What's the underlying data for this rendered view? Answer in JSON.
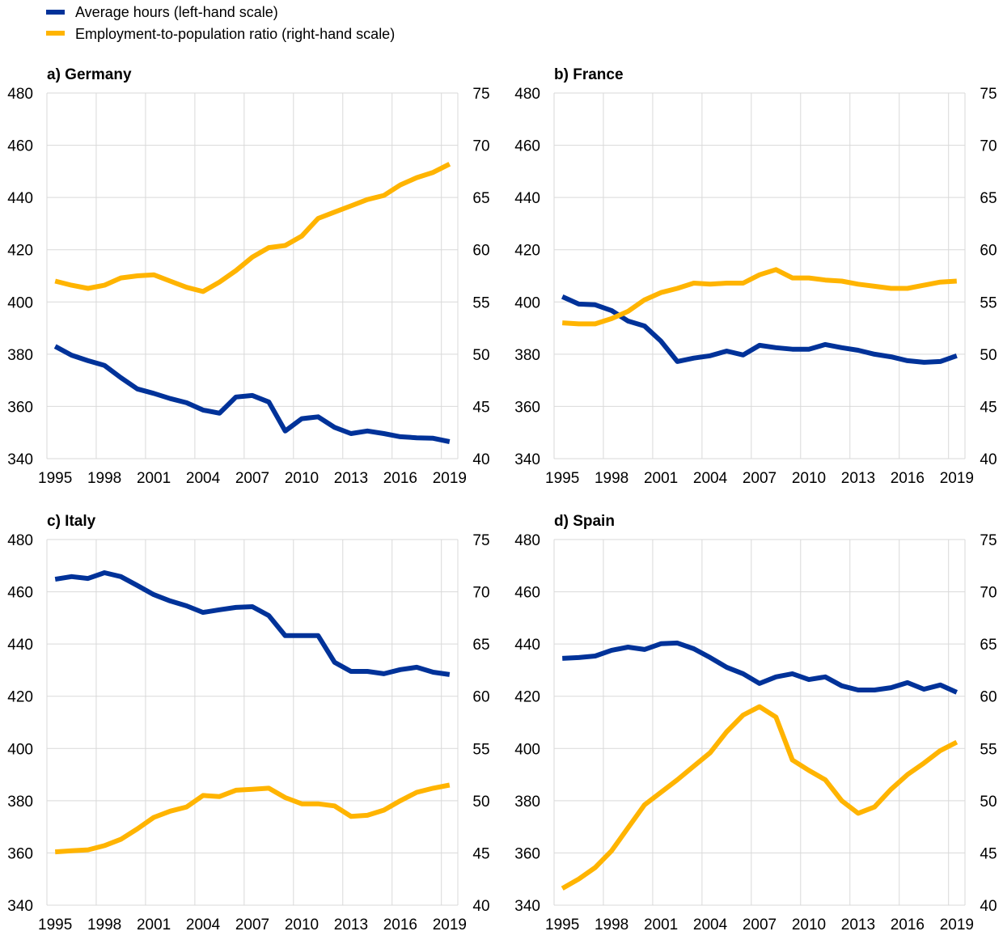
{
  "legend": [
    {
      "label": "Average hours (left-hand scale)",
      "color": "#003299"
    },
    {
      "label": "Employment-to-population ratio (right-hand scale)",
      "color": "#FFB400"
    }
  ],
  "chart_data": [
    {
      "type": "line",
      "title": "a) Germany",
      "x": [
        1995,
        1996,
        1997,
        1998,
        1999,
        2000,
        2001,
        2002,
        2003,
        2004,
        2005,
        2006,
        2007,
        2008,
        2009,
        2010,
        2011,
        2012,
        2013,
        2014,
        2015,
        2016,
        2017,
        2018,
        2019
      ],
      "x_tick_labels": [
        "1995",
        "1998",
        "2001",
        "2004",
        "2007",
        "2010",
        "2013",
        "2016",
        "2019"
      ],
      "ylim_left": [
        340,
        480
      ],
      "y_ticks_left": [
        "340",
        "360",
        "380",
        "400",
        "420",
        "440",
        "460",
        "480"
      ],
      "ylim_right": [
        40,
        75
      ],
      "y_ticks_right": [
        "40",
        "45",
        "50",
        "55",
        "60",
        "65",
        "70",
        "75"
      ],
      "grid": true,
      "series": [
        {
          "name": "Average hours (left-hand scale)",
          "axis": "left",
          "values": [
            383,
            379.6,
            377.5,
            375.7,
            371,
            366.7,
            365,
            363,
            361.4,
            358.6,
            357.4,
            363.6,
            364.2,
            361.7,
            350.6,
            355.3,
            356,
            352,
            349.6,
            350.6,
            349.6,
            348.4,
            348,
            347.8,
            346.5
          ]
        },
        {
          "name": "Employment-to-population ratio (right-hand scale)",
          "axis": "right",
          "values": [
            57.0,
            56.6,
            56.3,
            56.6,
            57.3,
            57.5,
            57.6,
            57.0,
            56.4,
            56.0,
            56.9,
            58.0,
            59.3,
            60.2,
            60.4,
            61.3,
            63.0,
            63.6,
            64.2,
            64.8,
            65.2,
            66.2,
            66.9,
            67.4,
            68.2
          ]
        }
      ]
    },
    {
      "type": "line",
      "title": "b) France",
      "x": [
        1995,
        1996,
        1997,
        1998,
        1999,
        2000,
        2001,
        2002,
        2003,
        2004,
        2005,
        2006,
        2007,
        2008,
        2009,
        2010,
        2011,
        2012,
        2013,
        2014,
        2015,
        2016,
        2017,
        2018,
        2019
      ],
      "x_tick_labels": [
        "1995",
        "1998",
        "2001",
        "2004",
        "2007",
        "2010",
        "2013",
        "2016",
        "2019"
      ],
      "ylim_left": [
        340,
        480
      ],
      "y_ticks_left": [
        "340",
        "360",
        "380",
        "400",
        "420",
        "440",
        "460",
        "480"
      ],
      "ylim_right": [
        40,
        75
      ],
      "y_ticks_right": [
        "40",
        "45",
        "50",
        "55",
        "60",
        "65",
        "70",
        "75"
      ],
      "grid": true,
      "series": [
        {
          "name": "Average hours (left-hand scale)",
          "axis": "left",
          "values": [
            402,
            399.2,
            398.9,
            396.7,
            392.7,
            390.8,
            385,
            377.2,
            378.5,
            379.4,
            381.2,
            379.7,
            383.4,
            382.5,
            381.9,
            381.9,
            383.7,
            382.5,
            381.5,
            380,
            379,
            377.5,
            376.9,
            377.2,
            379.4
          ]
        },
        {
          "name": "Employment-to-population ratio (right-hand scale)",
          "axis": "right",
          "values": [
            53.0,
            52.9,
            52.9,
            53.4,
            54.1,
            55.2,
            55.9,
            56.3,
            56.8,
            56.7,
            56.8,
            56.8,
            57.6,
            58.1,
            57.3,
            57.3,
            57.1,
            57.0,
            56.7,
            56.5,
            56.3,
            56.3,
            56.6,
            56.9,
            57.0
          ]
        }
      ]
    },
    {
      "type": "line",
      "title": "c) Italy",
      "x": [
        1995,
        1996,
        1997,
        1998,
        1999,
        2000,
        2001,
        2002,
        2003,
        2004,
        2005,
        2006,
        2007,
        2008,
        2009,
        2010,
        2011,
        2012,
        2013,
        2014,
        2015,
        2016,
        2017,
        2018,
        2019
      ],
      "x_tick_labels": [
        "1995",
        "1998",
        "2001",
        "2004",
        "2007",
        "2010",
        "2013",
        "2016",
        "2019"
      ],
      "ylim_left": [
        340,
        480
      ],
      "y_ticks_left": [
        "340",
        "360",
        "380",
        "400",
        "420",
        "440",
        "460",
        "480"
      ],
      "ylim_right": [
        40,
        75
      ],
      "y_ticks_right": [
        "40",
        "45",
        "50",
        "55",
        "60",
        "65",
        "70",
        "75"
      ],
      "grid": true,
      "series": [
        {
          "name": "Average hours (left-hand scale)",
          "axis": "left",
          "values": [
            464.8,
            465.8,
            465.1,
            467.3,
            465.8,
            462.4,
            458.9,
            456.5,
            454.6,
            452.1,
            453.1,
            454,
            454.3,
            450.9,
            443.2,
            443.2,
            443.2,
            433,
            429.5,
            429.5,
            428.6,
            430.2,
            431.1,
            429.2,
            428.3
          ]
        },
        {
          "name": "Employment-to-population ratio (right-hand scale)",
          "axis": "right",
          "values": [
            45.1,
            45.2,
            45.3,
            45.7,
            46.3,
            47.3,
            48.4,
            49.0,
            49.4,
            50.5,
            50.4,
            51.0,
            51.1,
            51.2,
            50.3,
            49.7,
            49.7,
            49.5,
            48.5,
            48.6,
            49.1,
            50.0,
            50.8,
            51.2,
            51.5
          ]
        }
      ]
    },
    {
      "type": "line",
      "title": "d) Spain",
      "x": [
        1995,
        1996,
        1997,
        1998,
        1999,
        2000,
        2001,
        2002,
        2003,
        2004,
        2005,
        2006,
        2007,
        2008,
        2009,
        2010,
        2011,
        2012,
        2013,
        2014,
        2015,
        2016,
        2017,
        2018,
        2019
      ],
      "x_tick_labels": [
        "1995",
        "1998",
        "2001",
        "2004",
        "2007",
        "2010",
        "2013",
        "2016",
        "2019"
      ],
      "ylim_left": [
        340,
        480
      ],
      "y_ticks_left": [
        "340",
        "360",
        "380",
        "400",
        "420",
        "440",
        "460",
        "480"
      ],
      "ylim_right": [
        40,
        75
      ],
      "y_ticks_right": [
        "40",
        "45",
        "50",
        "55",
        "60",
        "65",
        "70",
        "75"
      ],
      "grid": true,
      "series": [
        {
          "name": "Average hours (left-hand scale)",
          "axis": "left",
          "values": [
            434.5,
            434.8,
            435.4,
            437.6,
            438.8,
            437.9,
            440.1,
            440.4,
            438.2,
            434.8,
            431.1,
            428.6,
            424.9,
            427.4,
            428.6,
            426.4,
            427.4,
            424,
            422.4,
            422.4,
            423.3,
            425.2,
            422.7,
            424.3,
            421.5
          ]
        },
        {
          "name": "Employment-to-population ratio (right-hand scale)",
          "axis": "right",
          "values": [
            41.6,
            42.5,
            43.6,
            45.2,
            47.4,
            49.6,
            50.8,
            52.0,
            53.3,
            54.6,
            56.6,
            58.2,
            59.0,
            58.0,
            53.9,
            52.9,
            52.0,
            50.0,
            48.8,
            49.4,
            51.1,
            52.5,
            53.6,
            54.8,
            55.6
          ]
        }
      ]
    }
  ]
}
